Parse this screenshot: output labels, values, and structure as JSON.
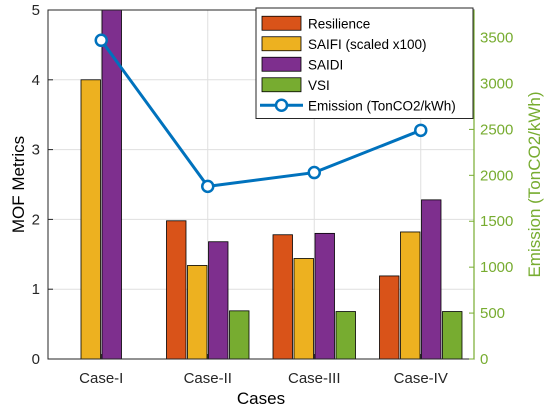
{
  "chart_data": {
    "type": "bar",
    "categories": [
      "Case-I",
      "Case-II",
      "Case-III",
      "Case-IV"
    ],
    "xlabel": "Cases",
    "ylabel": "MOF Metrics",
    "ylim": [
      0,
      5
    ],
    "yticks": [
      "0",
      "1",
      "2",
      "3",
      "4",
      "5"
    ],
    "y2label": "Emission (TonCO2/kWh)",
    "y2lim": [
      0,
      3800
    ],
    "y2ticks": [
      "0",
      "500",
      "1000",
      "1500",
      "2000",
      "2500",
      "3000",
      "3500"
    ],
    "grid": true,
    "legend_position": "top-right",
    "series": [
      {
        "name": "Resilience",
        "type": "bar",
        "axis": "left",
        "color": "#D95319",
        "values": [
          0,
          1.98,
          1.78,
          1.19
        ]
      },
      {
        "name": "SAIFI (scaled x100)",
        "type": "bar",
        "axis": "left",
        "color": "#EDB120",
        "values": [
          4.0,
          1.34,
          1.44,
          1.82
        ]
      },
      {
        "name": "SAIDI",
        "type": "bar",
        "axis": "left",
        "color": "#7E2F8E",
        "values": [
          5.2,
          1.68,
          1.8,
          2.28
        ]
      },
      {
        "name": "VSI",
        "type": "bar",
        "axis": "left",
        "color": "#77AC30",
        "values": [
          0,
          0.69,
          0.68,
          0.68
        ]
      },
      {
        "name": "Emission (TonCO2/kWh)",
        "type": "line",
        "axis": "right",
        "color": "#0072BD",
        "values": [
          3470,
          1880,
          2030,
          2490
        ]
      }
    ],
    "right_axis_color": "#77AC30"
  }
}
